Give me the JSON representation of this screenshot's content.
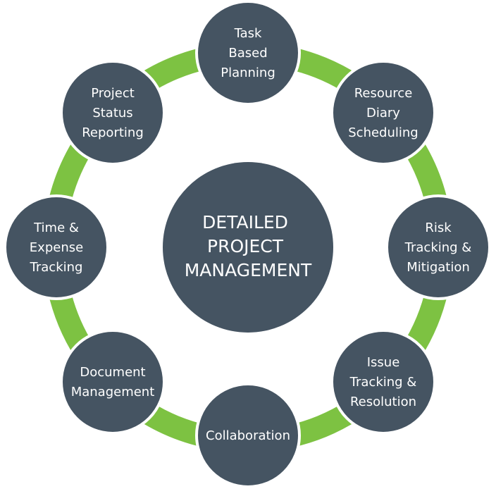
{
  "colors": {
    "node_fill": "#455462",
    "connector": "#7dc242",
    "label": "#ffffff",
    "background": "#ffffff"
  },
  "center": {
    "lines": [
      "DETAILED",
      "PROJECT",
      "MANAGEMENT"
    ]
  },
  "nodes": [
    {
      "id": "task-based-planning",
      "lines": [
        "Task",
        "Based",
        "Planning"
      ]
    },
    {
      "id": "resource-diary-scheduling",
      "lines": [
        "Resource",
        "Diary",
        "Scheduling"
      ]
    },
    {
      "id": "risk-tracking-mitigation",
      "lines": [
        "Risk",
        "Tracking &",
        "Mitigation"
      ]
    },
    {
      "id": "issue-tracking-resolution",
      "lines": [
        "Issue",
        "Tracking &",
        "Resolution"
      ]
    },
    {
      "id": "collaboration",
      "lines": [
        "Collaboration"
      ]
    },
    {
      "id": "document-management",
      "lines": [
        "Document",
        "Management"
      ]
    },
    {
      "id": "time-expense-tracking",
      "lines": [
        "Time &",
        "Expense",
        "Tracking"
      ]
    },
    {
      "id": "project-status-reporting",
      "lines": [
        "Project",
        "Status",
        "Reporting"
      ]
    }
  ]
}
